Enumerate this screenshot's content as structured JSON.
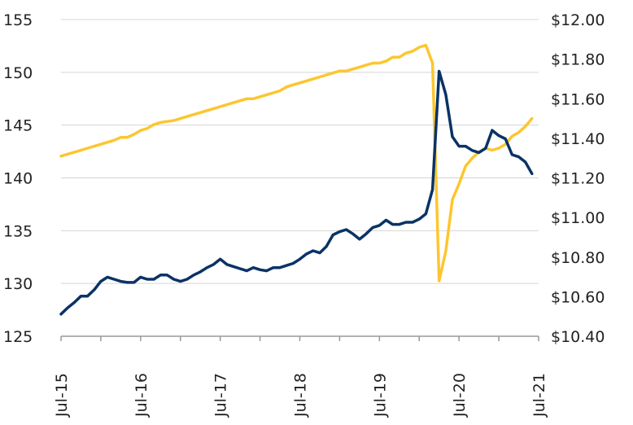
{
  "chart_data": {
    "type": "line",
    "title": "",
    "xlabel": "",
    "ylabel": "",
    "x_start": "Jul-15",
    "x_unit": "months since Jul-15",
    "xlim": [
      0,
      72
    ],
    "x_tick_labels": [
      {
        "month": 0,
        "label": "Jul-15"
      },
      {
        "month": 12,
        "label": "Jul-16"
      },
      {
        "month": 24,
        "label": "Jul-17"
      },
      {
        "month": 36,
        "label": "Jul-18"
      },
      {
        "month": 48,
        "label": "Jul-19"
      },
      {
        "month": 60,
        "label": "Jul-20"
      },
      {
        "month": 72,
        "label": "Jul-21"
      }
    ],
    "x_minor_tick_months": [
      0,
      6,
      12,
      18,
      24,
      30,
      36,
      42,
      48,
      54,
      60,
      66,
      72
    ],
    "left_axis": {
      "ylim": [
        125,
        155
      ],
      "ticks": [
        "125",
        "130",
        "135",
        "140",
        "145",
        "150",
        "155"
      ],
      "tick_values": [
        125,
        130,
        135,
        140,
        145,
        150,
        155
      ]
    },
    "right_axis": {
      "ylim": [
        10.4,
        12.0
      ],
      "ticks": [
        "$10.40",
        "$10.60",
        "$10.80",
        "$11.00",
        "$11.20",
        "$11.40",
        "$11.60",
        "$11.80",
        "$12.00"
      ],
      "tick_values": [
        10.4,
        10.6,
        10.8,
        11.0,
        11.2,
        11.4,
        11.6,
        11.8,
        12.0
      ]
    },
    "grid": "horizontal",
    "legend": "none",
    "series": [
      {
        "axis": "left",
        "color": "#0a3366",
        "values": [
          127.1,
          127.7,
          128.2,
          128.8,
          128.8,
          129.4,
          130.2,
          130.6,
          130.4,
          130.2,
          130.1,
          130.1,
          130.6,
          130.4,
          130.4,
          130.8,
          130.8,
          130.4,
          130.2,
          130.4,
          130.8,
          131.1,
          131.5,
          131.8,
          132.3,
          131.8,
          131.6,
          131.4,
          131.2,
          131.5,
          131.3,
          131.2,
          131.5,
          131.5,
          131.7,
          131.9,
          132.3,
          132.8,
          133.1,
          132.9,
          133.5,
          134.6,
          134.9,
          135.1,
          134.7,
          134.2,
          134.7,
          135.3,
          135.5,
          136.0,
          135.6,
          135.6,
          135.8,
          135.8,
          136.1,
          136.6,
          138.9,
          150.1,
          147.9,
          143.9,
          143.0,
          143.0,
          142.6,
          142.4,
          142.8,
          144.5,
          144.0,
          143.7,
          142.2,
          142.0,
          141.5,
          140.4
        ]
      },
      {
        "axis": "right",
        "color": "#fdc630",
        "values": [
          11.31,
          11.32,
          11.33,
          11.34,
          11.35,
          11.36,
          11.37,
          11.38,
          11.39,
          11.405,
          11.405,
          11.42,
          11.44,
          11.45,
          11.47,
          11.48,
          11.485,
          11.49,
          11.5,
          11.51,
          11.52,
          11.53,
          11.54,
          11.55,
          11.56,
          11.57,
          11.58,
          11.59,
          11.6,
          11.6,
          11.61,
          11.62,
          11.63,
          11.64,
          11.66,
          11.67,
          11.68,
          11.69,
          11.7,
          11.71,
          11.72,
          11.73,
          11.74,
          11.74,
          11.75,
          11.76,
          11.77,
          11.78,
          11.78,
          11.79,
          11.81,
          11.81,
          11.83,
          11.84,
          11.86,
          11.87,
          11.78,
          10.68,
          10.83,
          11.09,
          11.17,
          11.26,
          11.3,
          11.33,
          11.35,
          11.34,
          11.35,
          11.37,
          11.41,
          11.43,
          11.46,
          11.5
        ]
      }
    ]
  }
}
